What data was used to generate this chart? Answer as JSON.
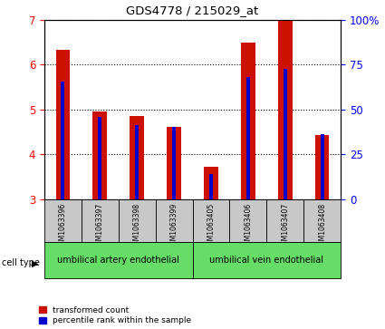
{
  "title": "GDS4778 / 215029_at",
  "samples": [
    "GSM1063396",
    "GSM1063397",
    "GSM1063398",
    "GSM1063399",
    "GSM1063405",
    "GSM1063406",
    "GSM1063407",
    "GSM1063408"
  ],
  "red_values": [
    6.32,
    4.95,
    4.85,
    4.6,
    3.72,
    6.5,
    7.0,
    4.42
  ],
  "blue_values": [
    5.62,
    4.83,
    4.65,
    4.6,
    3.55,
    5.72,
    5.9,
    4.45
  ],
  "ylim": [
    3,
    7
  ],
  "yticks": [
    3,
    4,
    5,
    6,
    7
  ],
  "right_yticks": [
    0,
    25,
    50,
    75,
    100
  ],
  "right_ytick_labels": [
    "0",
    "25",
    "50",
    "75",
    "100%"
  ],
  "red_color": "#cc1100",
  "blue_color": "#0000cc",
  "group1_label": "umbilical artery endothelial",
  "group2_label": "umbilical vein endothelial",
  "cell_type_label": "cell type",
  "legend_red": "transformed count",
  "legend_blue": "percentile rank within the sample",
  "plot_bg": "#ffffff",
  "group_bg_color": "#66dd66",
  "label_bg_color": "#c8c8c8"
}
